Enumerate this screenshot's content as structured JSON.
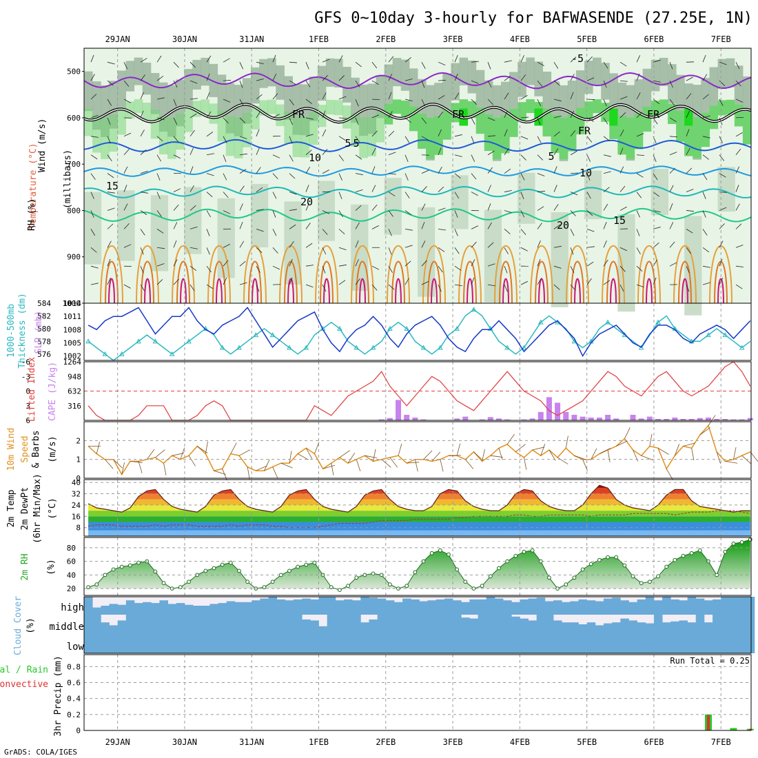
{
  "title": "GFS 0~10day 3-hourly for BAFWASENDE (27.25E, 1N)",
  "credit": "GrADS: COLA/IGES",
  "dates": [
    "29JAN",
    "30JAN",
    "31JAN",
    "1FEB",
    "2FEB",
    "3FEB",
    "4FEB",
    "5FEB",
    "6FEB",
    "7FEB"
  ],
  "colors": {
    "rh_light": "#e8f4e6",
    "rh_mid": "#c4d9c3",
    "rh_dark": "#96b29a",
    "rh_green": "#6fd46f",
    "rh_bright": "#1ed81e",
    "slp": "#1438c8",
    "thickness": "#2ab8c0",
    "lifted_index": "#e03c3c",
    "cape": "#c882ee",
    "wind_speed": "#e0901c",
    "cloud": "#6aaad8",
    "rain_total": "#28c828",
    "rain_convective": "#e03030"
  },
  "panels": {
    "upper_air": {
      "labels": {
        "wind": "Wind (m/s)",
        "temperature": "Temperature (°C)",
        "rh": "RH (%)",
        "units": "(millibars)"
      },
      "pressure_ticks": [
        "500",
        "600",
        "700",
        "800",
        "900",
        "1000"
      ],
      "isotherm_labels": [
        "-5",
        "5",
        "10",
        "15",
        "20",
        "FR",
        "FR",
        "FR",
        "FR",
        "5",
        "10",
        "15",
        "20",
        "5"
      ]
    },
    "slp_thickness": {
      "labels": {
        "thickness": "1000-500mb",
        "thickness2": "Thickness (dm)",
        "slp": "SLP (mb)"
      },
      "thickness_ticks": [
        "576",
        "578",
        "580",
        "582",
        "584"
      ],
      "slp_ticks": [
        "1002",
        "1005",
        "1008",
        "1011",
        "1014"
      ]
    },
    "stability": {
      "labels": {
        "li": "Lifted Index",
        "cape": "CAPE (J/kg)"
      },
      "li_ticks": [
        "-6",
        "-3",
        "0",
        "3",
        "6"
      ],
      "cape_ticks": [
        "316",
        "632",
        "948",
        "1264"
      ]
    },
    "wind10m": {
      "labels": {
        "line1": "10m Wind",
        "line2": "Speed",
        "line3": "& Barbs",
        "units": "(m/s)"
      },
      "ticks": [
        "0",
        "1",
        "2"
      ]
    },
    "temp2m": {
      "labels": {
        "line1": "2m Temp",
        "line2": "2m DewPt",
        "line3": "(6hr Min/Max)",
        "units": "(°C)"
      },
      "ticks": [
        "8",
        "16",
        "24",
        "32",
        "40"
      ]
    },
    "rh2m": {
      "labels": {
        "line1": "2m RH",
        "units": "(%)"
      },
      "ticks": [
        "20",
        "40",
        "60",
        "80"
      ]
    },
    "cloud": {
      "labels": {
        "line1": "Cloud Cover",
        "units": "(%)",
        "high": "high",
        "middle": "middle",
        "low": "low"
      }
    },
    "precip": {
      "labels": {
        "line1": "3hr Precip (mm)",
        "total": "Total / Rain",
        "convective": "Convective",
        "run_total": "Run Total = 0.25"
      },
      "ticks": [
        "0",
        "0.2",
        "0.4",
        "0.6",
        "0.8"
      ]
    }
  },
  "chart_data": {
    "type": "meteogram",
    "start_hour_offset": 6,
    "time_step_hours": 3,
    "pressure_axis": {
      "min": 450,
      "max": 1000,
      "ticks": [
        500,
        600,
        700,
        800,
        900,
        1000
      ]
    },
    "isotherms": [
      {
        "label": "-5",
        "mean_hpa": 520,
        "amp": 12,
        "color": "#8a28c8"
      },
      {
        "label": "FR",
        "mean_hpa": 590,
        "amp": 14,
        "color": "#000000",
        "double": true
      },
      {
        "label": "5",
        "mean_hpa": 660,
        "amp": 9,
        "color": "#1e5ad8"
      },
      {
        "label": "10",
        "mean_hpa": 715,
        "amp": 8,
        "color": "#1e9ae0"
      },
      {
        "label": "15",
        "mean_hpa": 760,
        "amp": 9,
        "color": "#1eb8b8"
      },
      {
        "label": "20",
        "mean_hpa": 810,
        "amp": 10,
        "color": "#1ec88a"
      }
    ],
    "slp_mb": [
      1009,
      1008,
      1010,
      1011,
      1011,
      1012,
      1013,
      1010,
      1007,
      1009,
      1011,
      1011,
      1013,
      1010,
      1008,
      1007,
      1009,
      1010,
      1011,
      1013,
      1010,
      1007,
      1004,
      1006,
      1008,
      1010,
      1011,
      1012,
      1008,
      1005,
      1003,
      1006,
      1008,
      1009,
      1011,
      1009,
      1006,
      1004,
      1007,
      1009,
      1010,
      1011,
      1009,
      1006,
      1004,
      1003,
      1006,
      1008,
      1008,
      1010,
      1008,
      1006,
      1003,
      1005,
      1007,
      1009,
      1010,
      1008,
      1006,
      1002,
      1005,
      1007,
      1008,
      1009,
      1007,
      1005,
      1004,
      1007,
      1009,
      1009,
      1008,
      1006,
      1005,
      1007,
      1008,
      1009,
      1008,
      1006,
      1008,
      1010
    ],
    "thickness_dm": [
      578,
      577,
      576,
      575,
      576,
      577,
      578,
      579,
      578,
      577,
      576,
      577,
      578,
      579,
      580,
      579,
      577,
      576,
      577,
      578,
      579,
      580,
      579,
      578,
      577,
      576,
      577,
      579,
      580,
      581,
      580,
      578,
      577,
      576,
      577,
      578,
      580,
      581,
      580,
      578,
      577,
      576,
      577,
      579,
      580,
      582,
      583,
      582,
      580,
      578,
      577,
      576,
      577,
      579,
      581,
      582,
      581,
      580,
      578,
      577,
      578,
      580,
      581,
      580,
      579,
      578,
      577,
      579,
      581,
      582,
      580,
      579,
      578,
      578,
      579,
      580,
      579,
      578,
      577,
      578
    ],
    "lifted_index": [
      3,
      5,
      6,
      6,
      6,
      6,
      5,
      3,
      3,
      3,
      6,
      6,
      6,
      5,
      3,
      2,
      3,
      6,
      6,
      6,
      6,
      6,
      6,
      6,
      6,
      6,
      6,
      3,
      4,
      5,
      3,
      1,
      0,
      -1,
      -2,
      -4,
      -1,
      1,
      3,
      1,
      -1,
      -3,
      -2,
      0,
      2,
      3,
      4,
      2,
      0,
      -2,
      -4,
      -2,
      0,
      1,
      2,
      4,
      5,
      4,
      3,
      2,
      0,
      -2,
      -4,
      -3,
      -1,
      0,
      1,
      -1,
      -3,
      -4,
      -2,
      0,
      1,
      0,
      -1,
      -3,
      -5,
      -6,
      -4,
      -1
    ],
    "cape_jkg": [
      0,
      0,
      0,
      0,
      0,
      0,
      0,
      0,
      0,
      0,
      0,
      0,
      0,
      0,
      0,
      0,
      0,
      0,
      0,
      0,
      0,
      0,
      0,
      0,
      0,
      0,
      0,
      0,
      0,
      0,
      0,
      0,
      0,
      0,
      0,
      20,
      50,
      440,
      120,
      60,
      20,
      0,
      0,
      0,
      40,
      80,
      0,
      20,
      70,
      40,
      20,
      0,
      20,
      40,
      180,
      500,
      380,
      180,
      120,
      80,
      60,
      60,
      120,
      40,
      0,
      120,
      40,
      80,
      30,
      30,
      60,
      30,
      30,
      50,
      60,
      30,
      30,
      20,
      20,
      50
    ],
    "wind_speed_ms": [
      1.7,
      1.3,
      1.0,
      1.0,
      0.2,
      0.9,
      0.9,
      1.0,
      1.1,
      0.8,
      1.2,
      1.0,
      1.2,
      1.7,
      1.3,
      0.4,
      0.5,
      1.3,
      1.2,
      0.6,
      0.4,
      0.4,
      0.6,
      0.8,
      0.8,
      1.3,
      1.6,
      1.3,
      0.5,
      0.8,
      1.1,
      0.8,
      1.0,
      1.2,
      0.9,
      1.0,
      1.1,
      1.2,
      0.8,
      1.0,
      1.0,
      0.9,
      1.0,
      1.2,
      1.2,
      1.0,
      1.4,
      0.9,
      1.2,
      1.6,
      1.8,
      1.4,
      1.1,
      1.5,
      1.2,
      1.5,
      1.1,
      1.6,
      1.2,
      1.0,
      1.0,
      1.3,
      1.5,
      1.7,
      2.1,
      1.5,
      1.2,
      1.7,
      1.6,
      0.5,
      1.2,
      1.7,
      1.6,
      2.3,
      2.8,
      1.4,
      0.9,
      1.0,
      1.2,
      1.4
    ],
    "temp2m_c": [
      25,
      22,
      21,
      20,
      19,
      22,
      30,
      34,
      35,
      28,
      23,
      21,
      20,
      19,
      23,
      31,
      34,
      35,
      28,
      23,
      21,
      20,
      19,
      23,
      31,
      34,
      35,
      28,
      23,
      21,
      20,
      19,
      23,
      31,
      34,
      35,
      28,
      23,
      21,
      20,
      20,
      23,
      32,
      35,
      34,
      27,
      23,
      21,
      20,
      20,
      24,
      32,
      35,
      34,
      27,
      23,
      21,
      20,
      20,
      24,
      32,
      38,
      36,
      28,
      24,
      22,
      21,
      20,
      24,
      31,
      35,
      35,
      27,
      23,
      22,
      21,
      20,
      19,
      20,
      20
    ],
    "dewpt2m_c": [
      9,
      10,
      10,
      10,
      9,
      9,
      9,
      9,
      10,
      9,
      10,
      10,
      10,
      9,
      9,
      9,
      9,
      10,
      9,
      10,
      10,
      10,
      9,
      9,
      8,
      8,
      8,
      8,
      9,
      10,
      11,
      11,
      11,
      11,
      12,
      13,
      13,
      13,
      13,
      14,
      14,
      14,
      14,
      14,
      15,
      15,
      16,
      16,
      16,
      16,
      16,
      17,
      17,
      16,
      16,
      17,
      17,
      17,
      17,
      17,
      16,
      17,
      17,
      17,
      17,
      18,
      18,
      18,
      18,
      18,
      17,
      18,
      19,
      19,
      19,
      20,
      20,
      20,
      19,
      18
    ],
    "rh2m_pct": [
      22,
      26,
      40,
      48,
      52,
      54,
      58,
      60,
      45,
      28,
      20,
      22,
      30,
      40,
      46,
      50,
      55,
      58,
      46,
      30,
      20,
      22,
      30,
      40,
      46,
      52,
      55,
      58,
      40,
      22,
      18,
      24,
      36,
      40,
      42,
      40,
      26,
      20,
      24,
      44,
      60,
      72,
      76,
      70,
      48,
      30,
      20,
      24,
      38,
      50,
      60,
      68,
      74,
      76,
      60,
      36,
      20,
      26,
      36,
      48,
      56,
      62,
      66,
      66,
      54,
      38,
      28,
      30,
      38,
      52,
      62,
      68,
      72,
      76,
      60,
      40,
      74,
      86,
      88,
      92
    ],
    "cloud_high_pct": [
      100,
      40,
      50,
      60,
      55,
      80,
      65,
      70,
      65,
      80,
      60,
      65,
      55,
      50,
      50,
      60,
      65,
      75,
      70,
      70,
      80,
      90,
      100,
      85,
      80,
      85,
      90,
      85,
      100,
      100,
      80,
      85,
      80,
      100,
      95,
      90,
      80,
      70,
      90,
      85,
      75,
      80,
      85,
      90,
      80,
      70,
      85,
      85,
      100,
      90,
      80,
      70,
      85,
      90,
      95,
      75,
      80,
      70,
      75,
      85,
      80,
      75,
      90,
      95,
      80,
      70,
      85,
      100,
      80,
      100,
      85,
      80,
      100,
      90,
      80,
      85,
      100,
      100,
      100,
      100
    ],
    "cloud_mid_pct": [
      100,
      100,
      60,
      45,
      70,
      100,
      100,
      100,
      100,
      100,
      100,
      100,
      100,
      100,
      100,
      100,
      100,
      100,
      100,
      100,
      100,
      100,
      100,
      100,
      100,
      100,
      75,
      70,
      40,
      100,
      100,
      100,
      100,
      60,
      75,
      100,
      100,
      100,
      100,
      100,
      100,
      100,
      100,
      100,
      100,
      85,
      80,
      100,
      100,
      100,
      100,
      90,
      80,
      70,
      100,
      100,
      70,
      60,
      60,
      50,
      60,
      45,
      55,
      60,
      80,
      70,
      60,
      55,
      100,
      60,
      65,
      70,
      60,
      100,
      60,
      100,
      100,
      100,
      100,
      100
    ],
    "cloud_low_pct": [
      100,
      100,
      100,
      100,
      100,
      100,
      100,
      100,
      100,
      100,
      100,
      100,
      100,
      100,
      100,
      100,
      100,
      100,
      100,
      100,
      100,
      100,
      100,
      100,
      100,
      100,
      100,
      100,
      100,
      100,
      100,
      100,
      100,
      100,
      100,
      100,
      100,
      100,
      100,
      100,
      100,
      100,
      100,
      100,
      100,
      100,
      100,
      100,
      100,
      100,
      100,
      100,
      100,
      100,
      100,
      100,
      100,
      100,
      100,
      100,
      100,
      100,
      100,
      100,
      100,
      100,
      100,
      100,
      100,
      100,
      100,
      100,
      100,
      100,
      100,
      100,
      100,
      100,
      100,
      100
    ],
    "precip_total_mm": [
      0,
      0,
      0,
      0,
      0,
      0,
      0,
      0,
      0,
      0,
      0,
      0,
      0,
      0,
      0,
      0,
      0,
      0,
      0,
      0,
      0,
      0,
      0,
      0,
      0,
      0,
      0,
      0,
      0,
      0,
      0,
      0,
      0,
      0,
      0,
      0,
      0,
      0,
      0,
      0,
      0,
      0,
      0,
      0,
      0,
      0,
      0,
      0,
      0,
      0,
      0,
      0,
      0,
      0,
      0,
      0,
      0,
      0,
      0,
      0,
      0,
      0,
      0,
      0,
      0,
      0,
      0,
      0,
      0,
      0,
      0,
      0,
      0,
      0,
      0.2,
      0,
      0,
      0.03,
      0,
      0.02
    ],
    "precip_conv_mm": [
      0,
      0,
      0,
      0,
      0,
      0,
      0,
      0,
      0,
      0,
      0,
      0,
      0,
      0,
      0,
      0,
      0,
      0,
      0,
      0,
      0,
      0,
      0,
      0,
      0,
      0,
      0,
      0,
      0,
      0,
      0,
      0,
      0,
      0,
      0,
      0,
      0,
      0,
      0,
      0,
      0,
      0,
      0,
      0,
      0,
      0,
      0,
      0,
      0,
      0,
      0,
      0,
      0,
      0,
      0,
      0,
      0,
      0,
      0,
      0,
      0,
      0,
      0,
      0,
      0,
      0,
      0,
      0,
      0,
      0,
      0,
      0,
      0,
      0,
      0.19,
      0,
      0,
      0,
      0,
      0.02
    ],
    "run_total_mm": 0.25
  }
}
